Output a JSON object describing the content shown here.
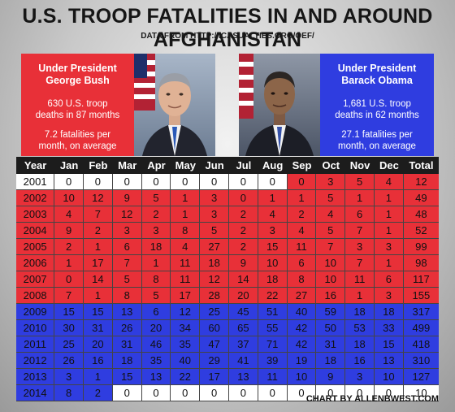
{
  "title": "U.S. TROOP FATALITIES IN AND AROUND AFGHANISTAN",
  "subtitle": "DATA FROM HTTP://ICASUALTIES.ORG/OEF/",
  "bush_panel": {
    "heading_line1": "Under President",
    "heading_line2": "George Bush",
    "stat1_line1": "630 U.S. troop",
    "stat1_line2": "deaths in 87 months",
    "stat2_line1": "7.2 fatalities per",
    "stat2_line2": "month, on average"
  },
  "obama_panel": {
    "heading_line1": "Under President",
    "heading_line2": "Barack Obama",
    "stat1_line1": "1,681 U.S. troop",
    "stat1_line2": "deaths in 62 months",
    "stat2_line1": "27.1 fatalities per",
    "stat2_line2": "month, on average"
  },
  "footer": "CHART BY ALLENBWEST.COM",
  "colors": {
    "bush_red": "#e83038",
    "obama_blue": "#2f3de0",
    "header_black": "#1c1c1c"
  },
  "chart_data": {
    "type": "table",
    "columns": [
      "Year",
      "Jan",
      "Feb",
      "Mar",
      "Apr",
      "May",
      "Jun",
      "Jul",
      "Aug",
      "Sep",
      "Oct",
      "Nov",
      "Dec",
      "Total"
    ],
    "rows": [
      [
        "2001",
        0,
        0,
        0,
        0,
        0,
        0,
        0,
        0,
        0,
        3,
        5,
        4,
        12
      ],
      [
        "2002",
        10,
        12,
        9,
        5,
        1,
        3,
        0,
        1,
        1,
        5,
        1,
        1,
        49
      ],
      [
        "2003",
        4,
        7,
        12,
        2,
        1,
        3,
        2,
        4,
        2,
        4,
        6,
        1,
        48
      ],
      [
        "2004",
        9,
        2,
        3,
        3,
        8,
        5,
        2,
        3,
        4,
        5,
        7,
        1,
        52
      ],
      [
        "2005",
        2,
        1,
        6,
        18,
        4,
        27,
        2,
        15,
        11,
        7,
        3,
        3,
        99
      ],
      [
        "2006",
        1,
        17,
        7,
        1,
        11,
        18,
        9,
        10,
        6,
        10,
        7,
        1,
        98
      ],
      [
        "2007",
        0,
        14,
        5,
        8,
        11,
        12,
        14,
        18,
        8,
        10,
        11,
        6,
        117
      ],
      [
        "2008",
        7,
        1,
        8,
        5,
        17,
        28,
        20,
        22,
        27,
        16,
        1,
        3,
        155
      ],
      [
        "2009",
        15,
        15,
        13,
        6,
        12,
        25,
        45,
        51,
        40,
        59,
        18,
        18,
        317
      ],
      [
        "2010",
        30,
        31,
        26,
        20,
        34,
        60,
        65,
        55,
        42,
        50,
        53,
        33,
        499
      ],
      [
        "2011",
        25,
        20,
        31,
        46,
        35,
        47,
        37,
        71,
        42,
        31,
        18,
        15,
        418
      ],
      [
        "2012",
        26,
        16,
        18,
        35,
        40,
        29,
        41,
        39,
        19,
        18,
        16,
        13,
        310
      ],
      [
        "2013",
        3,
        1,
        15,
        13,
        22,
        17,
        13,
        11,
        10,
        9,
        3,
        10,
        127
      ],
      [
        "2014",
        8,
        2,
        0,
        0,
        0,
        0,
        0,
        0,
        0,
        0,
        0,
        0,
        10
      ]
    ],
    "cell_presidency": [
      [
        "none",
        "none",
        "none",
        "none",
        "none",
        "none",
        "none",
        "none",
        "none",
        "bush",
        "bush",
        "bush",
        "bush",
        "bush"
      ],
      [
        "bush",
        "bush",
        "bush",
        "bush",
        "bush",
        "bush",
        "bush",
        "bush",
        "bush",
        "bush",
        "bush",
        "bush",
        "bush",
        "bush"
      ],
      [
        "bush",
        "bush",
        "bush",
        "bush",
        "bush",
        "bush",
        "bush",
        "bush",
        "bush",
        "bush",
        "bush",
        "bush",
        "bush",
        "bush"
      ],
      [
        "bush",
        "bush",
        "bush",
        "bush",
        "bush",
        "bush",
        "bush",
        "bush",
        "bush",
        "bush",
        "bush",
        "bush",
        "bush",
        "bush"
      ],
      [
        "bush",
        "bush",
        "bush",
        "bush",
        "bush",
        "bush",
        "bush",
        "bush",
        "bush",
        "bush",
        "bush",
        "bush",
        "bush",
        "bush"
      ],
      [
        "bush",
        "bush",
        "bush",
        "bush",
        "bush",
        "bush",
        "bush",
        "bush",
        "bush",
        "bush",
        "bush",
        "bush",
        "bush",
        "bush"
      ],
      [
        "bush",
        "bush",
        "bush",
        "bush",
        "bush",
        "bush",
        "bush",
        "bush",
        "bush",
        "bush",
        "bush",
        "bush",
        "bush",
        "bush"
      ],
      [
        "bush",
        "bush",
        "bush",
        "bush",
        "bush",
        "bush",
        "bush",
        "bush",
        "bush",
        "bush",
        "bush",
        "bush",
        "bush",
        "bush"
      ],
      [
        "obama",
        "obama",
        "obama",
        "obama",
        "obama",
        "obama",
        "obama",
        "obama",
        "obama",
        "obama",
        "obama",
        "obama",
        "obama",
        "obama"
      ],
      [
        "obama",
        "obama",
        "obama",
        "obama",
        "obama",
        "obama",
        "obama",
        "obama",
        "obama",
        "obama",
        "obama",
        "obama",
        "obama",
        "obama"
      ],
      [
        "obama",
        "obama",
        "obama",
        "obama",
        "obama",
        "obama",
        "obama",
        "obama",
        "obama",
        "obama",
        "obama",
        "obama",
        "obama",
        "obama"
      ],
      [
        "obama",
        "obama",
        "obama",
        "obama",
        "obama",
        "obama",
        "obama",
        "obama",
        "obama",
        "obama",
        "obama",
        "obama",
        "obama",
        "obama"
      ],
      [
        "obama",
        "obama",
        "obama",
        "obama",
        "obama",
        "obama",
        "obama",
        "obama",
        "obama",
        "obama",
        "obama",
        "obama",
        "obama",
        "obama"
      ],
      [
        "obama",
        "obama",
        "obama",
        "none",
        "none",
        "none",
        "none",
        "none",
        "none",
        "none",
        "none",
        "none",
        "none",
        "none"
      ]
    ]
  }
}
